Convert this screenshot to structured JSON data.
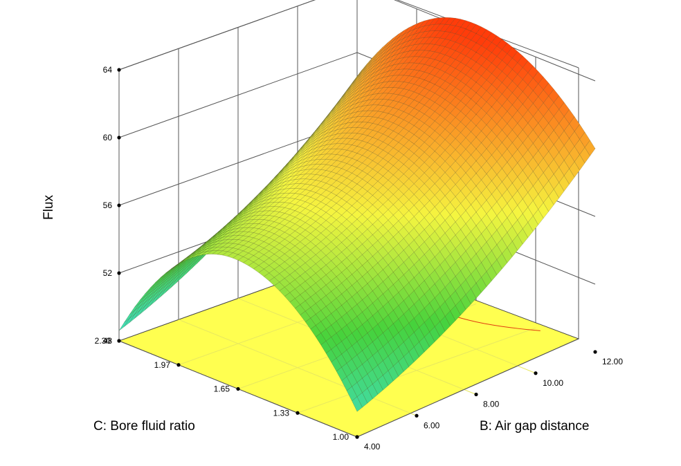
{
  "chart_data": {
    "type": "surface3d",
    "zlabel": "Flux",
    "x_axis_label": "C: Bore fluid ratio",
    "y_axis_label": "B: Air gap distance",
    "x_ticks": [
      "2.30",
      "1.97",
      "1.65",
      "1.33",
      "1.00"
    ],
    "y_ticks": [
      "4.00",
      "6.00",
      "8.00",
      "10.00",
      "12.00"
    ],
    "z_ticks": [
      "48",
      "52",
      "56",
      "60",
      "64"
    ],
    "xlim": [
      1.0,
      2.3
    ],
    "ylim": [
      4.0,
      12.0
    ],
    "zlim": [
      48,
      64
    ],
    "floor_color": "#ffff50",
    "colormap": [
      "#40e0d0",
      "#40d040",
      "#ffff40",
      "#ff4010"
    ],
    "corner_values": {
      "c2.30_b4": 48.6,
      "c1.00_b4": 49.5,
      "c2.30_b12": 58.6,
      "c1.00_b12": 60.0
    },
    "peak": {
      "c": 1.67,
      "b": 12.0,
      "flux": 64.5
    }
  }
}
